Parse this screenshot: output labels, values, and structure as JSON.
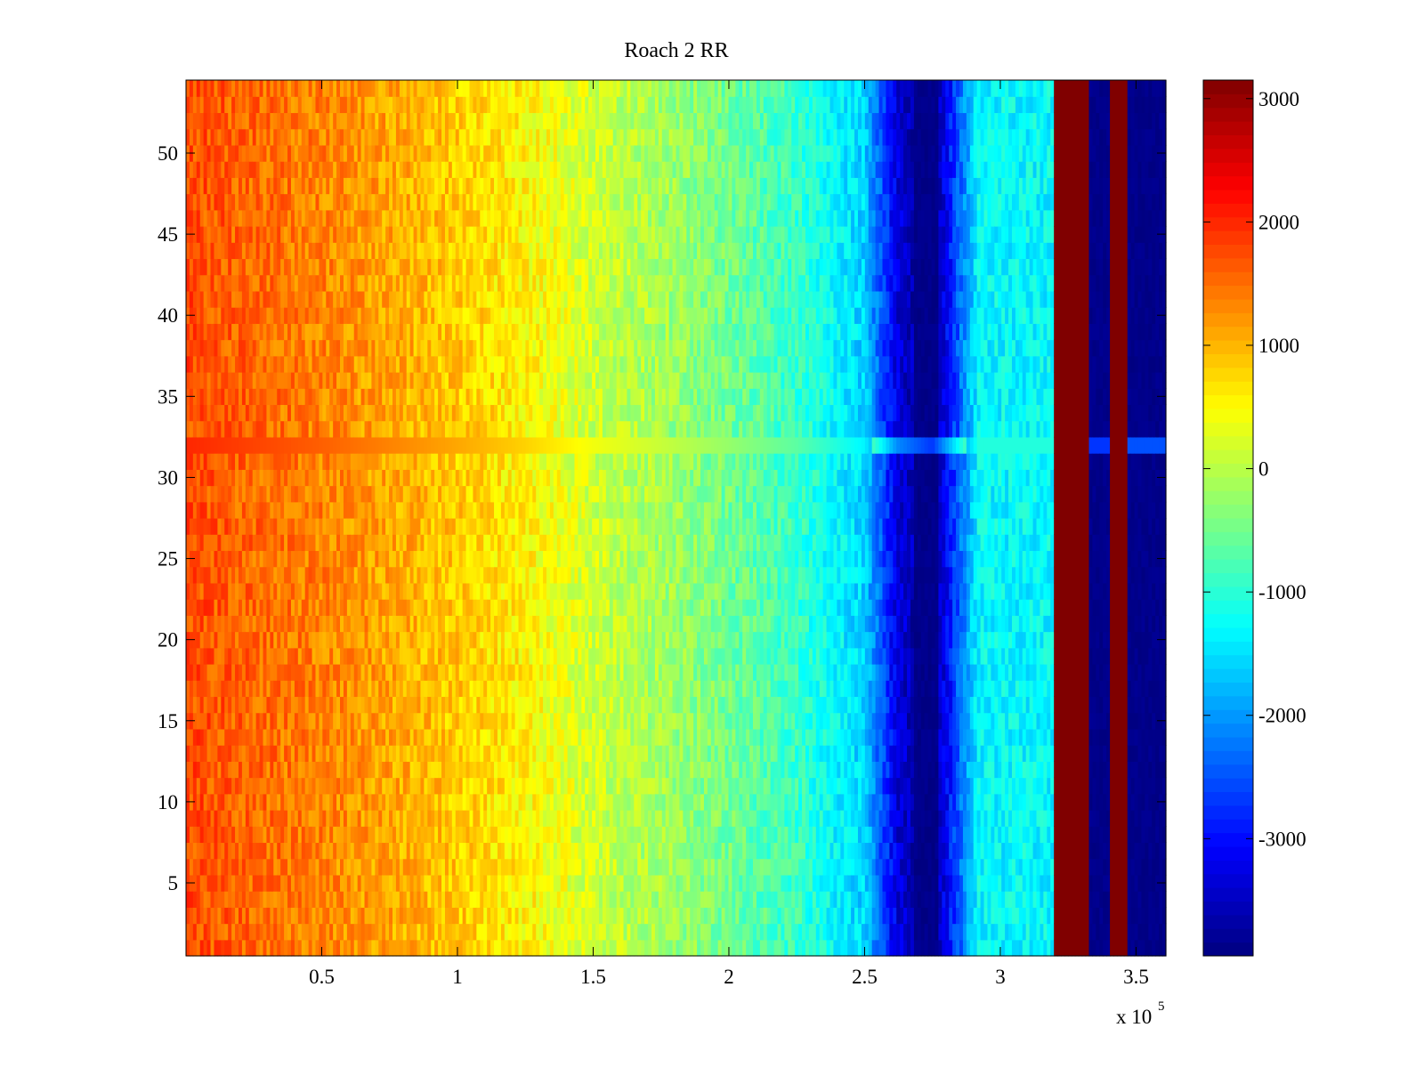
{
  "chart_data": {
    "type": "heatmap",
    "title": "Roach 2 RR",
    "xlabel": "",
    "ylabel": "",
    "colormap": "jet",
    "x_range": [
      0,
      361000
    ],
    "y_range": [
      0.5,
      54.5
    ],
    "x_ticks": [
      50000,
      100000,
      150000,
      200000,
      250000,
      300000,
      350000
    ],
    "x_tick_labels": [
      "0.5",
      "1",
      "1.5",
      "2",
      "2.5",
      "3",
      "3.5"
    ],
    "x_exponent_label": {
      "base": "x 10",
      "power": "5"
    },
    "y_ticks": [
      5,
      10,
      15,
      20,
      25,
      30,
      35,
      40,
      45,
      50
    ],
    "y_tick_labels": [
      "5",
      "10",
      "15",
      "20",
      "25",
      "30",
      "35",
      "40",
      "45",
      "50"
    ],
    "colorbar": {
      "range": [
        -3950,
        3150
      ],
      "ticks": [
        3000,
        2000,
        1000,
        0,
        -1000,
        -2000,
        -3000
      ],
      "tick_labels": [
        "3000",
        "2000",
        "1000",
        "0",
        "-1000",
        "-2000",
        "-3000"
      ]
    },
    "column_profile": [
      {
        "x": 0,
        "value": 1750
      },
      {
        "x": 25000,
        "value": 1550
      },
      {
        "x": 50000,
        "value": 1350
      },
      {
        "x": 75000,
        "value": 1100
      },
      {
        "x": 100000,
        "value": 850
      },
      {
        "x": 125000,
        "value": 550
      },
      {
        "x": 150000,
        "value": 150
      },
      {
        "x": 175000,
        "value": -150
      },
      {
        "x": 200000,
        "value": -500
      },
      {
        "x": 225000,
        "value": -900
      },
      {
        "x": 250000,
        "value": -1600
      },
      {
        "x": 262000,
        "value": -3300
      },
      {
        "x": 275000,
        "value": -3900
      },
      {
        "x": 292000,
        "value": -1300
      },
      {
        "x": 320000,
        "value": 3100
      },
      {
        "x": 333000,
        "value": -3900
      },
      {
        "x": 340000,
        "value": 3100
      },
      {
        "x": 347000,
        "value": -3700
      },
      {
        "x": 361000,
        "value": -3700
      }
    ]
  }
}
